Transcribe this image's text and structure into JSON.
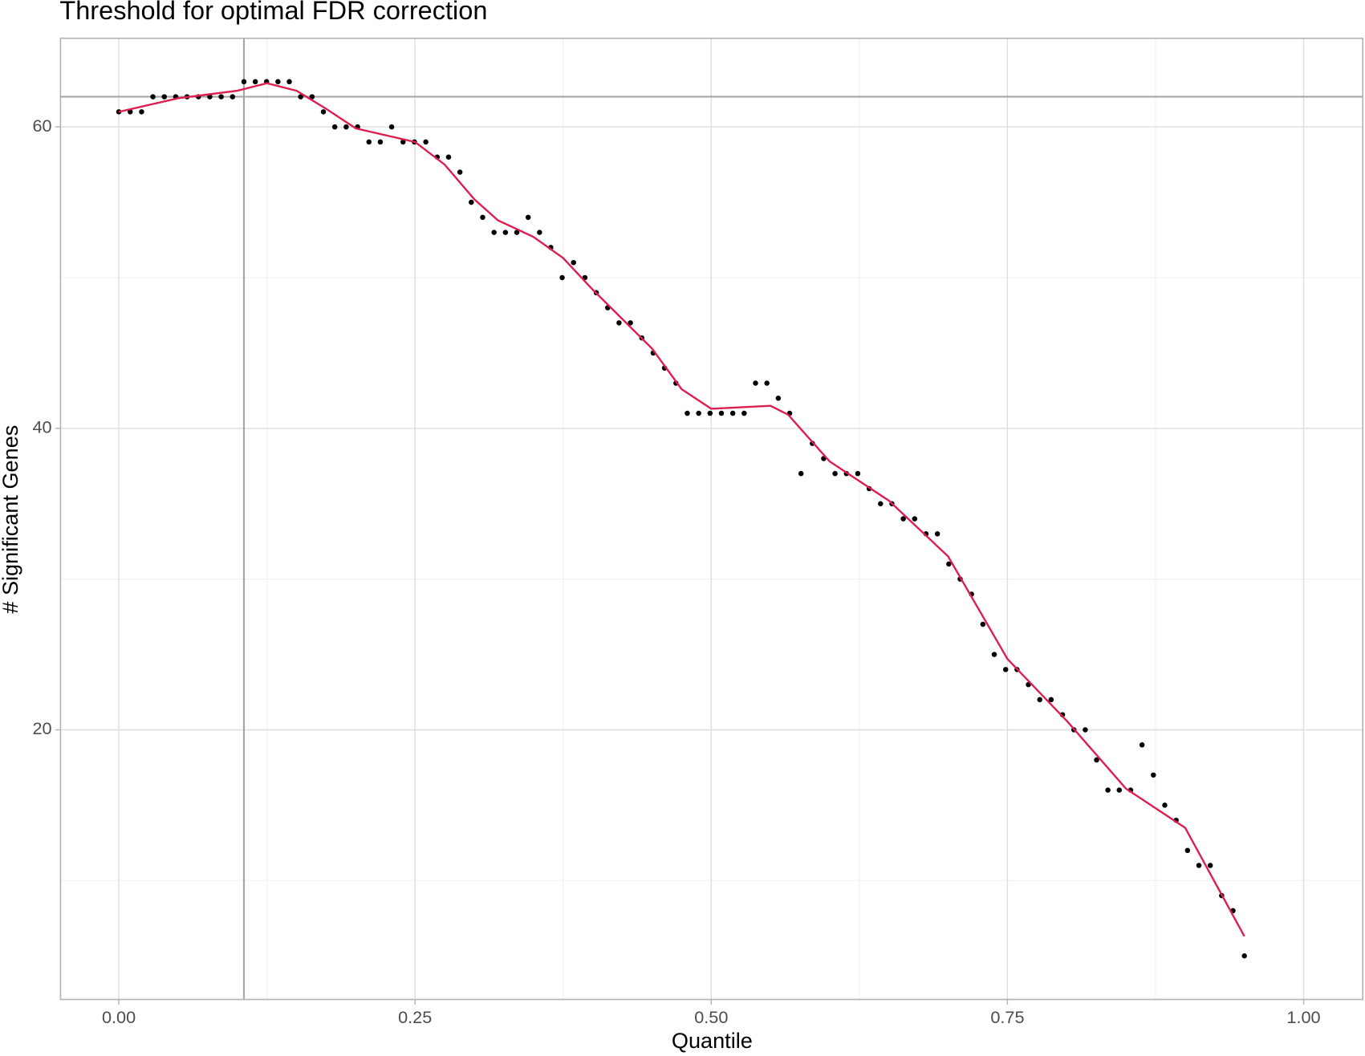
{
  "chart_data": {
    "type": "scatter",
    "title": "Threshold for optimal FDR correction",
    "xlabel": "Quantile",
    "ylabel": "# Significant Genes",
    "xlim": [
      -0.0492,
      1.0499
    ],
    "ylim": [
      2.11,
      65.88
    ],
    "xticks": [
      {
        "value": 0,
        "label": "0.00"
      },
      {
        "value": 0.25,
        "label": "0.25"
      },
      {
        "value": 0.5,
        "label": "0.50"
      },
      {
        "value": 0.75,
        "label": "0.75"
      },
      {
        "value": 1,
        "label": "1.00"
      }
    ],
    "yticks": [
      20,
      40,
      60
    ],
    "xminor": [
      0.125,
      0.375,
      0.625,
      0.875
    ],
    "yminor": [
      10,
      30,
      50
    ],
    "grid": true,
    "hline": 62,
    "hline_color": "#a6a6a6",
    "vline": 0.1056,
    "vline_color": "#a6a6a6",
    "series": [
      {
        "type": "scatter",
        "color": "#000000",
        "x": [
          0,
          0.0096,
          0.0192,
          0.0288,
          0.0384,
          0.048,
          0.0576,
          0.0672,
          0.0768,
          0.0864,
          0.096,
          0.1056,
          0.1152,
          0.1247,
          0.1343,
          0.1439,
          0.1535,
          0.1631,
          0.1727,
          0.1823,
          0.1919,
          0.2015,
          0.2111,
          0.2207,
          0.2303,
          0.2399,
          0.2495,
          0.2591,
          0.2687,
          0.2783,
          0.2879,
          0.2975,
          0.3071,
          0.3167,
          0.3263,
          0.3359,
          0.3455,
          0.3551,
          0.3646,
          0.3742,
          0.3838,
          0.3934,
          0.403,
          0.4126,
          0.4222,
          0.4318,
          0.4414,
          0.451,
          0.4606,
          0.4702,
          0.4798,
          0.4894,
          0.499,
          0.5086,
          0.5182,
          0.5278,
          0.5374,
          0.547,
          0.5566,
          0.5662,
          0.5758,
          0.5854,
          0.5949,
          0.6045,
          0.6141,
          0.6237,
          0.6333,
          0.6429,
          0.6525,
          0.6621,
          0.6717,
          0.6813,
          0.6909,
          0.7005,
          0.7101,
          0.7197,
          0.7293,
          0.7389,
          0.7485,
          0.7581,
          0.7677,
          0.7773,
          0.7869,
          0.7965,
          0.8061,
          0.8157,
          0.8253,
          0.8348,
          0.8444,
          0.854,
          0.8636,
          0.8732,
          0.8828,
          0.8924,
          0.902,
          0.9116,
          0.9212,
          0.9308,
          0.9404,
          0.95
        ],
        "values": [
          61,
          61,
          61,
          62,
          62,
          62,
          62,
          62,
          62,
          62,
          62,
          63,
          63,
          63,
          63,
          63,
          62,
          62,
          61,
          60,
          60,
          60,
          59,
          59,
          60,
          59,
          59,
          59,
          58,
          58,
          57,
          55,
          54,
          53,
          53,
          53,
          54,
          53,
          52,
          50,
          51,
          50,
          49,
          48,
          47,
          47,
          46,
          45,
          44,
          43,
          41,
          41,
          41,
          41,
          41,
          41,
          43,
          43,
          42,
          41,
          37,
          39,
          38,
          37,
          37,
          37,
          36,
          35,
          35,
          34,
          34,
          33,
          33,
          31,
          30,
          29,
          27,
          25,
          24,
          24,
          23,
          22,
          22,
          21,
          20,
          20,
          18,
          16,
          16,
          16,
          19,
          17,
          15,
          14,
          12,
          11,
          11,
          9,
          8,
          5
        ]
      },
      {
        "type": "line",
        "color": "#dc1f4f",
        "x": [
          0,
          0.05,
          0.1,
          0.125,
          0.15,
          0.175,
          0.2,
          0.25,
          0.275,
          0.3,
          0.32,
          0.35,
          0.375,
          0.4,
          0.45,
          0.475,
          0.5,
          0.525,
          0.55,
          0.565,
          0.6,
          0.65,
          0.7,
          0.75,
          0.8,
          0.85,
          0.9,
          0.95
        ],
        "values": [
          61.0,
          61.9,
          62.4,
          62.9,
          62.4,
          61.2,
          59.9,
          59.0,
          57.5,
          55.2,
          53.8,
          52.7,
          51.3,
          49.2,
          45.3,
          42.6,
          41.3,
          41.4,
          41.5,
          40.9,
          37.8,
          35.2,
          31.5,
          24.7,
          20.6,
          16.1,
          13.5,
          6.3
        ]
      }
    ]
  }
}
